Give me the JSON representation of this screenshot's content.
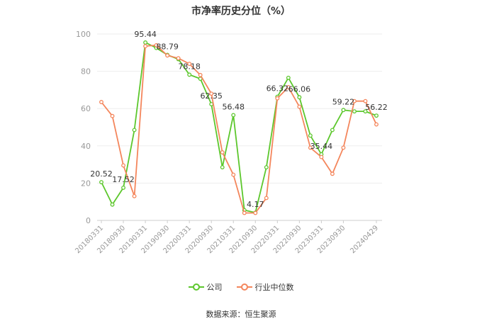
{
  "chart_data": {
    "type": "line",
    "title": "市净率历史分位（%）",
    "ylim": [
      0,
      100
    ],
    "yticks": [
      0,
      20,
      40,
      60,
      80,
      100
    ],
    "x": [
      "20180331",
      "20180630",
      "20180930",
      "20181231",
      "20190331",
      "20190630",
      "20190930",
      "20191231",
      "20200331",
      "20200630",
      "20200930",
      "20201231",
      "20210331",
      "20210630",
      "20210930",
      "20211231",
      "20220331",
      "20220630",
      "20220930",
      "20221231",
      "20230331",
      "20230630",
      "20230930",
      "20231231",
      "20240331",
      "20240429"
    ],
    "xtick_labels": [
      "20180331",
      "20180930",
      "20190331",
      "20190930",
      "20200331",
      "20200930",
      "20210331",
      "20210930",
      "20220331",
      "20220930",
      "20230331",
      "20230930",
      "20240429"
    ],
    "series": [
      {
        "name": "公司",
        "color": "#5cc72c",
        "values": [
          20.52,
          8.5,
          17.52,
          48.5,
          95.44,
          92.5,
          88.79,
          86.5,
          78.18,
          76,
          62.35,
          28.5,
          56.48,
          5.5,
          4.17,
          28.5,
          66.32,
          76.5,
          66.06,
          45.5,
          35.44,
          48.5,
          59.22,
          58.5,
          58.5,
          56.22
        ],
        "labels": {
          "0": "20.52",
          "2": "17.52",
          "4": "95.44",
          "6": "88.79",
          "8": "78.18",
          "10": "62.35",
          "12": "56.48",
          "14": "4.17",
          "16": "66.32",
          "18": "66.06",
          "20": "35.44",
          "22": "59.22",
          "25": "56.22"
        }
      },
      {
        "name": "行业中位数",
        "color": "#f4865c",
        "values": [
          63.5,
          56,
          29.5,
          13,
          93.5,
          94,
          88.5,
          87,
          84,
          78,
          68,
          36.5,
          24.5,
          4,
          4,
          12,
          65.5,
          71.5,
          61,
          39,
          34,
          25,
          39,
          64,
          64,
          51.5
        ]
      }
    ],
    "grid": true,
    "legend_position": "bottom"
  },
  "source": "数据来源：恒生聚源"
}
